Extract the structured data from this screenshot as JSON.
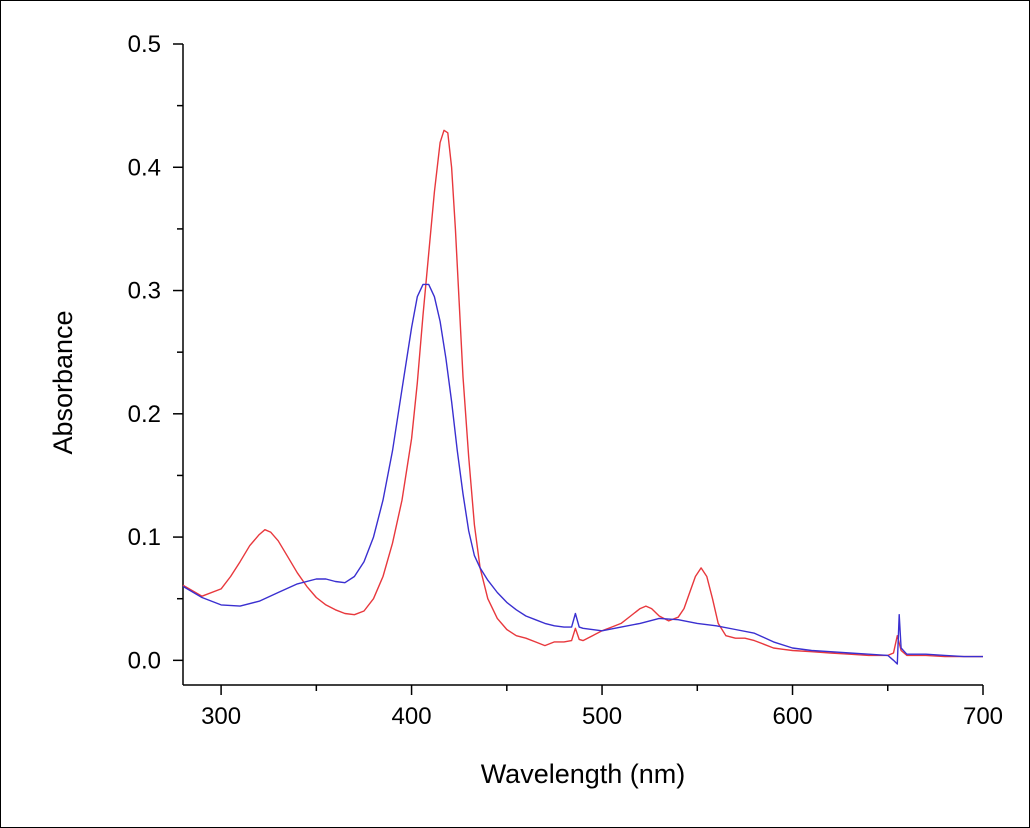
{
  "chart_data": {
    "type": "line",
    "title": "",
    "xlabel": "Wavelength (nm)",
    "ylabel": "Absorbance",
    "xlim": [
      280,
      700
    ],
    "ylim": [
      -0.02,
      0.5
    ],
    "x_ticks": [
      300,
      400,
      500,
      600,
      700
    ],
    "x_tick_labels": [
      "300",
      "400",
      "500",
      "600",
      "700"
    ],
    "y_ticks": [
      0.0,
      0.1,
      0.2,
      0.3,
      0.4,
      0.5
    ],
    "y_tick_labels": [
      "0.0",
      "0.1",
      "0.2",
      "0.3",
      "0.4",
      "0.5"
    ],
    "grid": false,
    "legend": "none",
    "series": [
      {
        "color": "#e8383d",
        "x": [
          280,
          290,
          300,
          305,
          310,
          315,
          320,
          323,
          326,
          330,
          335,
          340,
          345,
          350,
          355,
          360,
          365,
          370,
          375,
          380,
          385,
          390,
          395,
          400,
          403,
          406,
          409,
          412,
          415,
          417,
          419,
          421,
          423,
          425,
          427,
          430,
          433,
          436,
          440,
          445,
          450,
          455,
          460,
          465,
          470,
          475,
          480,
          484,
          486,
          488,
          490,
          495,
          500,
          505,
          510,
          515,
          520,
          523,
          526,
          530,
          535,
          540,
          543,
          546,
          549,
          552,
          555,
          558,
          561,
          565,
          570,
          575,
          580,
          585,
          590,
          595,
          600,
          610,
          620,
          630,
          640,
          650,
          653,
          655,
          657,
          660,
          670,
          680,
          690,
          700
        ],
        "y": [
          0.061,
          0.052,
          0.058,
          0.068,
          0.08,
          0.093,
          0.102,
          0.106,
          0.104,
          0.097,
          0.084,
          0.071,
          0.06,
          0.051,
          0.045,
          0.041,
          0.038,
          0.037,
          0.04,
          0.05,
          0.068,
          0.095,
          0.13,
          0.18,
          0.225,
          0.28,
          0.33,
          0.38,
          0.42,
          0.43,
          0.428,
          0.4,
          0.35,
          0.29,
          0.23,
          0.165,
          0.11,
          0.075,
          0.05,
          0.034,
          0.025,
          0.02,
          0.018,
          0.015,
          0.012,
          0.015,
          0.015,
          0.016,
          0.026,
          0.017,
          0.016,
          0.02,
          0.024,
          0.027,
          0.03,
          0.036,
          0.042,
          0.044,
          0.042,
          0.036,
          0.032,
          0.035,
          0.042,
          0.055,
          0.068,
          0.075,
          0.068,
          0.05,
          0.03,
          0.02,
          0.018,
          0.018,
          0.016,
          0.013,
          0.01,
          0.009,
          0.008,
          0.007,
          0.006,
          0.005,
          0.004,
          0.004,
          0.006,
          0.02,
          0.008,
          0.004,
          0.004,
          0.003,
          0.003,
          0.003
        ]
      },
      {
        "color": "#3a2fd0",
        "x": [
          280,
          290,
          300,
          310,
          320,
          330,
          340,
          350,
          355,
          360,
          365,
          370,
          375,
          380,
          385,
          390,
          395,
          400,
          403,
          406,
          409,
          412,
          415,
          418,
          421,
          424,
          427,
          430,
          433,
          436,
          440,
          445,
          450,
          455,
          460,
          465,
          470,
          475,
          480,
          484,
          486,
          488,
          490,
          500,
          510,
          520,
          530,
          540,
          550,
          560,
          570,
          580,
          590,
          600,
          610,
          620,
          630,
          640,
          650,
          653,
          655,
          656,
          657,
          660,
          670,
          680,
          690,
          700
        ],
        "y": [
          0.06,
          0.051,
          0.045,
          0.044,
          0.048,
          0.055,
          0.062,
          0.066,
          0.066,
          0.064,
          0.063,
          0.068,
          0.08,
          0.1,
          0.13,
          0.17,
          0.22,
          0.27,
          0.295,
          0.305,
          0.305,
          0.295,
          0.275,
          0.245,
          0.21,
          0.17,
          0.135,
          0.105,
          0.085,
          0.075,
          0.065,
          0.055,
          0.047,
          0.041,
          0.036,
          0.033,
          0.03,
          0.028,
          0.027,
          0.027,
          0.038,
          0.027,
          0.026,
          0.024,
          0.027,
          0.03,
          0.034,
          0.033,
          0.03,
          0.028,
          0.025,
          0.022,
          0.015,
          0.01,
          0.008,
          0.007,
          0.006,
          0.005,
          0.004,
          0.0,
          -0.003,
          0.037,
          0.01,
          0.005,
          0.005,
          0.004,
          0.003,
          0.003
        ]
      }
    ]
  }
}
